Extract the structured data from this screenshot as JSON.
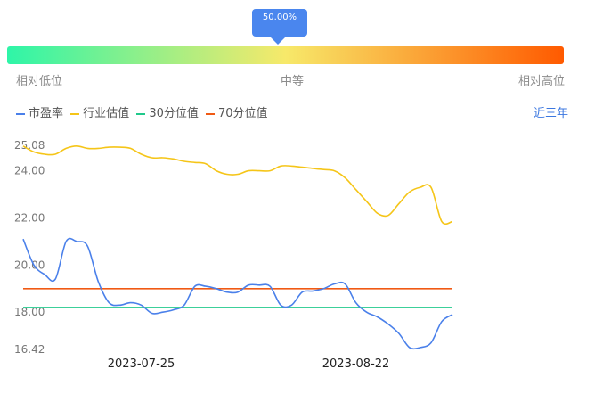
{
  "percentile": {
    "value": 0.5,
    "label": "50.00%",
    "low_label": "相对低位",
    "mid_label": "中等",
    "high_label": "相对高位",
    "gradient": [
      "#2ef5a8",
      "#f7e96a",
      "#ff5a00"
    ],
    "bubble_color": "#4a86ee"
  },
  "range_label": "近三年",
  "chart_data": {
    "type": "line",
    "ylim": [
      16.42,
      25.08
    ],
    "yticks": [
      "25.08",
      "24.00",
      "22.00",
      "20.00",
      "18.00",
      "16.42"
    ],
    "ytick_values": [
      25.08,
      24.0,
      22.0,
      20.0,
      18.0,
      16.42
    ],
    "xticks": [
      {
        "label": "2023-07-25",
        "index": 11
      },
      {
        "label": "2023-08-22",
        "index": 31
      }
    ],
    "n_points": 41,
    "series": [
      {
        "name": "市盈率",
        "color": "#4a80ea",
        "values": [
          21.1,
          20.0,
          19.6,
          19.4,
          21.0,
          21.0,
          20.8,
          19.3,
          18.4,
          18.3,
          18.4,
          18.3,
          17.95,
          18.0,
          18.1,
          18.3,
          19.1,
          19.1,
          19.0,
          18.85,
          18.85,
          19.15,
          19.15,
          19.1,
          18.3,
          18.3,
          18.85,
          18.9,
          19.0,
          19.2,
          19.2,
          18.4,
          18.0,
          17.8,
          17.5,
          17.1,
          16.5,
          16.5,
          16.7,
          17.6,
          17.9
        ]
      },
      {
        "name": "行业估值",
        "color": "#f5c518",
        "values": [
          25.05,
          24.8,
          24.7,
          24.7,
          24.95,
          25.05,
          24.95,
          24.95,
          25.0,
          25.0,
          24.95,
          24.7,
          24.55,
          24.55,
          24.5,
          24.4,
          24.35,
          24.3,
          24.0,
          23.85,
          23.85,
          24.0,
          24.0,
          24.0,
          24.2,
          24.2,
          24.15,
          24.1,
          24.05,
          24.0,
          23.7,
          23.2,
          22.7,
          22.2,
          22.1,
          22.6,
          23.1,
          23.3,
          23.3,
          21.85,
          21.85
        ]
      },
      {
        "name": "30分位值",
        "color": "#20c98b",
        "values": [
          18.2
        ]
      },
      {
        "name": "70分位值",
        "color": "#f05a14",
        "values": [
          19.0
        ]
      }
    ]
  }
}
